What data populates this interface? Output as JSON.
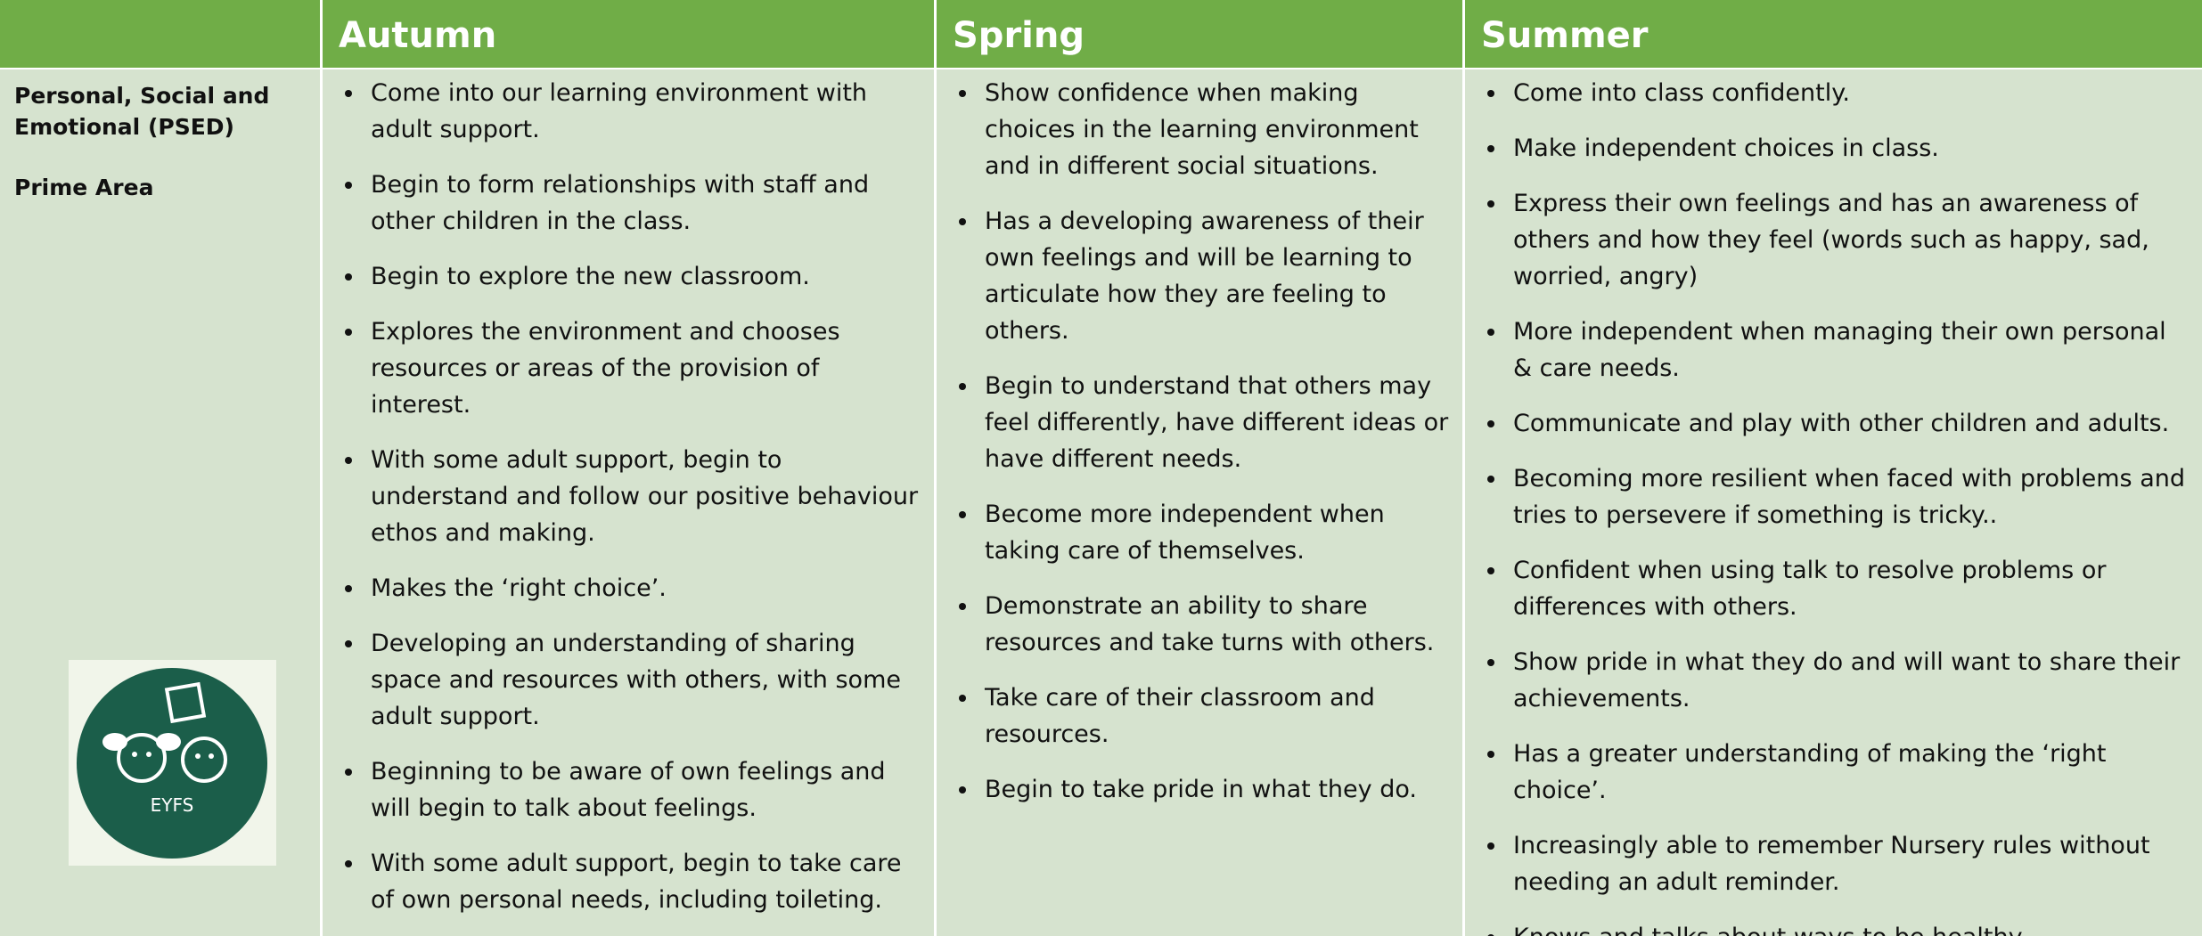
{
  "header": {
    "columns": [
      "Autumn",
      "Spring",
      "Summer"
    ]
  },
  "area": {
    "title": "Personal, Social and Emotional (PSED)",
    "subtitle": "Prime Area",
    "logo_text": "EYFS"
  },
  "columns": [
    {
      "items": [
        "Come into our learning environment with adult support.",
        "Begin to form relationships with staff and other children in the class.",
        "Begin to explore the new classroom.",
        "Explores the environment and chooses resources or areas of the provision of interest.",
        "With some adult support, begin to understand and follow our positive behaviour ethos and making.",
        "Makes the ‘right choice’.",
        "Developing an understanding of sharing space and resources with others, with some adult support.",
        "Beginning to be aware of own feelings and will begin to talk about feelings.",
        "With some adult support, begin to take care of own personal needs, including toileting."
      ]
    },
    {
      "items": [
        "Show confidence when making choices in the learning environment and in different social situations.",
        "Has a developing awareness of their own feelings and will be learning to articulate how they are feeling to others.",
        "Begin to understand that others may feel differently, have different ideas or have different needs.",
        "Become more independent when taking care of themselves.",
        "Demonstrate an ability to share resources and take turns with others.",
        "Take care of their classroom and resources.",
        "Begin to take pride in what they do."
      ]
    },
    {
      "items": [
        "Come into class confidently.",
        "Make independent choices in class.",
        "Express their own feelings and has an awareness of others and how they feel (words such as happy, sad, worried, angry)",
        "More independent when managing their own personal & care needs.",
        "Communicate and play with other children and adults.",
        "Becoming more resilient when faced with problems and tries to persevere if something is tricky..",
        "Confident when using talk to resolve problems or differences with others.",
        "Show pride in what they do and will want to share their achievements.",
        "Has a greater understanding of making the ‘right choice’.",
        "Increasingly able to remember Nursery rules without needing an adult reminder.",
        "Knows and talks about ways to be healthy."
      ]
    }
  ]
}
